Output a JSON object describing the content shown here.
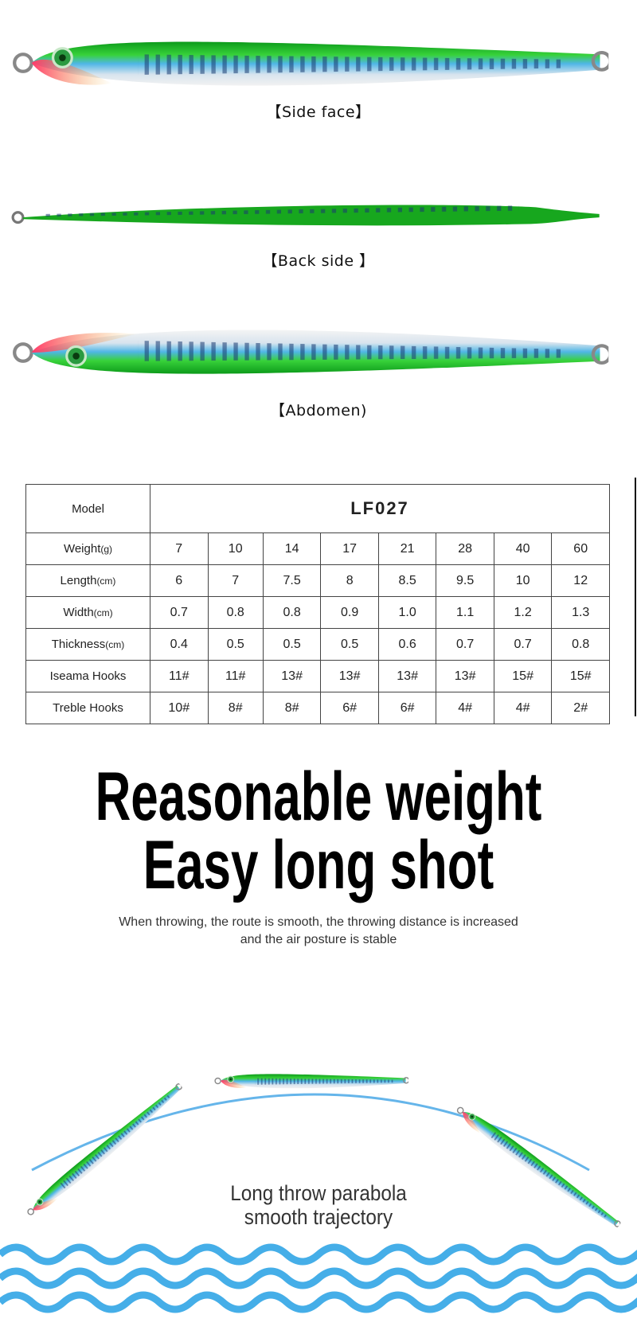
{
  "views": [
    {
      "label": "【Side face】"
    },
    {
      "label": "【Back side 】"
    },
    {
      "label": "【Abdomen)"
    }
  ],
  "spec_table": {
    "model_label": "Model",
    "model_value": "LF027",
    "rows": [
      {
        "label": "Weight",
        "unit": "(g)",
        "values": [
          "7",
          "10",
          "14",
          "17",
          "21",
          "28",
          "40",
          "60"
        ]
      },
      {
        "label": "Length",
        "unit": "(cm)",
        "values": [
          "6",
          "7",
          "7.5",
          "8",
          "8.5",
          "9.5",
          "10",
          "12"
        ]
      },
      {
        "label": "Width",
        "unit": "(cm)",
        "values": [
          "0.7",
          "0.8",
          "0.8",
          "0.9",
          "1.0",
          "1.1",
          "1.2",
          "1.3"
        ]
      },
      {
        "label": "Thickness",
        "unit": "(cm)",
        "values": [
          "0.4",
          "0.5",
          "0.5",
          "0.5",
          "0.6",
          "0.7",
          "0.7",
          "0.8"
        ]
      },
      {
        "label": "Iseama Hooks",
        "unit": "",
        "values": [
          "11#",
          "11#",
          "13#",
          "13#",
          "13#",
          "13#",
          "15#",
          "15#"
        ]
      },
      {
        "label": "Treble Hooks",
        "unit": "",
        "values": [
          "10#",
          "8#",
          "8#",
          "6#",
          "6#",
          "4#",
          "4#",
          "2#"
        ]
      }
    ]
  },
  "headline": {
    "line1": "Reasonable weight",
    "line2": "Easy long shot",
    "sub1": "When throwing, the route is smooth, the throwing distance is increased",
    "sub2": "and the air posture is stable"
  },
  "throw": {
    "line1": "Long throw parabola",
    "line2": "smooth trajectory"
  },
  "colors": {
    "lure_green": "#1fb31f",
    "arc_blue": "#4aa8e6",
    "wave_blue": "#45aee8"
  }
}
